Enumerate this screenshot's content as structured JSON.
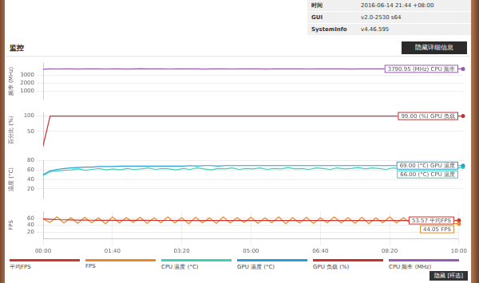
{
  "header": {
    "rows": [
      [
        "时间",
        "2016-06-14 21:44 +08:00"
      ],
      [
        "GUI",
        "v2.0-2530 s64"
      ],
      [
        "SystemInfo",
        "v4.46.595"
      ]
    ]
  },
  "section_title": "监控",
  "button": "隐藏详细信息",
  "footer_button": "隐藏 [环选]",
  "chart_data": [
    {
      "type": "line",
      "y_label": "频率 (MHz)",
      "x": [
        0,
        10,
        20,
        30,
        40,
        50,
        60,
        70,
        80,
        90,
        100,
        110,
        120,
        130,
        140,
        150,
        160,
        170,
        180,
        190,
        200,
        210,
        220,
        230,
        240,
        250,
        260,
        270,
        280,
        290,
        300,
        310,
        320,
        330,
        340,
        350,
        360,
        370,
        380,
        390,
        400,
        410,
        420,
        430,
        440,
        450,
        460,
        470,
        480,
        490,
        500,
        510,
        520,
        530,
        540,
        550,
        560,
        570,
        580,
        590,
        600
      ],
      "xlim": [
        0,
        600
      ],
      "ylim": [
        0,
        4500
      ],
      "yticks": [
        1000,
        2000,
        3000
      ],
      "grid": true,
      "legend": "bottom",
      "tick_labels": "y",
      "series": [
        {
          "name": "CPU 频率 (MHz)",
          "color": "#9b59b6",
          "values": [
            3750,
            3795,
            3780,
            3800,
            3790,
            3770,
            3805,
            3785,
            3795,
            3780,
            3800,
            3790,
            3775,
            3795,
            3810,
            3785,
            3790,
            3800,
            3780,
            3795,
            3790,
            3805,
            3785,
            3770,
            3795,
            3800,
            3790,
            3780,
            3795,
            3785,
            3800,
            3790,
            3775,
            3805,
            3790,
            3785,
            3795,
            3800,
            3780,
            3790,
            3795,
            3785,
            3800,
            3790,
            3770,
            3795,
            3805,
            3785,
            3790,
            3800,
            3780,
            3795,
            3790,
            3785,
            3800,
            3795,
            3780,
            3790,
            3805,
            3785,
            3790.95
          ]
        }
      ],
      "annotations": [
        {
          "text": "3790.95 (MHz) CPU 频率",
          "x": 600,
          "y": 3790.95
        }
      ]
    },
    {
      "type": "line",
      "y_label": "百分比 (%)",
      "x": [
        0,
        10,
        20,
        30,
        40,
        50,
        60,
        70,
        80,
        90,
        100,
        110,
        120,
        130,
        140,
        150,
        160,
        170,
        180,
        190,
        200,
        210,
        220,
        230,
        240,
        250,
        260,
        270,
        280,
        290,
        300,
        310,
        320,
        330,
        340,
        350,
        360,
        370,
        380,
        390,
        400,
        410,
        420,
        430,
        440,
        450,
        460,
        470,
        480,
        490,
        500,
        510,
        520,
        530,
        540,
        550,
        560,
        570,
        580,
        590,
        600
      ],
      "xlim": [
        0,
        600
      ],
      "ylim": [
        0,
        110
      ],
      "yticks": [
        50,
        100
      ],
      "grid": true,
      "legend": "bottom",
      "tick_labels": "y",
      "series": [
        {
          "name": "GPU 负载 (%)",
          "color": "#c9302c",
          "values": [
            5,
            99,
            99,
            99,
            99,
            99,
            99,
            99,
            99,
            99,
            99,
            99,
            99,
            99,
            99,
            99,
            99,
            99,
            99,
            99,
            99,
            99,
            99,
            99,
            99,
            99,
            99,
            99,
            99,
            99,
            99,
            99,
            99,
            99,
            99,
            99,
            99,
            99,
            99,
            99,
            99,
            99,
            99,
            99,
            99,
            99,
            99,
            99,
            99,
            99,
            99,
            99,
            99,
            99,
            99,
            99,
            99,
            99,
            99,
            99,
            99
          ]
        }
      ],
      "annotations": [
        {
          "text": "99.00 (%) GPU 负载",
          "x": 600,
          "y": 99
        }
      ]
    },
    {
      "type": "line",
      "y_label": "温度 (°C)",
      "x": [
        0,
        10,
        20,
        30,
        40,
        50,
        60,
        70,
        80,
        90,
        100,
        110,
        120,
        130,
        140,
        150,
        160,
        170,
        180,
        190,
        200,
        210,
        220,
        230,
        240,
        250,
        260,
        270,
        280,
        290,
        300,
        310,
        320,
        330,
        340,
        350,
        360,
        370,
        380,
        390,
        400,
        410,
        420,
        430,
        440,
        450,
        460,
        470,
        480,
        490,
        500,
        510,
        520,
        530,
        540,
        550,
        560,
        570,
        580,
        590,
        600
      ],
      "xlim": [
        0,
        600
      ],
      "ylim": [
        0,
        80
      ],
      "yticks": [
        20,
        40,
        60,
        80
      ],
      "grid": true,
      "legend": "bottom",
      "tick_labels": "y",
      "series": [
        {
          "name": "CPU 温度 (°C)",
          "color": "#3fd1b5",
          "values": [
            48,
            56,
            58,
            59,
            60,
            62,
            59,
            61,
            63,
            60,
            62,
            60,
            63,
            61,
            62,
            64,
            61,
            63,
            62,
            60,
            63,
            61,
            64,
            62,
            60,
            63,
            62,
            64,
            61,
            63,
            62,
            64,
            61,
            63,
            62,
            65,
            62,
            63,
            61,
            64,
            63,
            61,
            64,
            62,
            63,
            65,
            62,
            64,
            63,
            61,
            64,
            62,
            63,
            65,
            62,
            64,
            63,
            61,
            64,
            63,
            66
          ]
        },
        {
          "name": "GPU 温度 (°C)",
          "color": "#2a9fd6",
          "values": [
            50,
            58,
            61,
            63,
            64,
            65,
            66,
            66,
            67,
            67,
            67,
            68,
            68,
            68,
            68,
            68,
            68,
            68,
            68,
            68,
            68,
            69,
            68,
            69,
            69,
            68,
            69,
            69,
            69,
            69,
            69,
            69,
            69,
            69,
            69,
            69,
            69,
            69,
            69,
            69,
            69,
            69,
            69,
            69,
            69,
            69,
            69,
            69,
            69,
            69,
            69,
            69,
            69,
            69,
            69,
            69,
            69,
            69,
            69,
            69,
            69
          ]
        }
      ],
      "annotations": [
        {
          "text": "66.00 (°C) CPU 温度",
          "x": 600,
          "y": 66
        },
        {
          "text": "69.00 (°C) GPU 温度",
          "x": 600,
          "y": 69
        }
      ]
    },
    {
      "type": "line",
      "y_label": "FPS",
      "x": [
        0,
        10,
        20,
        30,
        40,
        50,
        60,
        70,
        80,
        90,
        100,
        110,
        120,
        130,
        140,
        150,
        160,
        170,
        180,
        190,
        200,
        210,
        220,
        230,
        240,
        250,
        260,
        270,
        280,
        290,
        300,
        310,
        320,
        330,
        340,
        350,
        360,
        370,
        380,
        390,
        400,
        410,
        420,
        430,
        440,
        450,
        460,
        470,
        480,
        490,
        500,
        510,
        520,
        530,
        540,
        550,
        560,
        570,
        580,
        590,
        600
      ],
      "xlim": [
        0,
        600
      ],
      "xticks": [
        {
          "value": 0,
          "label": "00:00"
        },
        {
          "value": 100,
          "label": "01:40"
        },
        {
          "value": 200,
          "label": "03:20"
        },
        {
          "value": 300,
          "label": "05:00"
        },
        {
          "value": 400,
          "label": "06:40"
        },
        {
          "value": 500,
          "label": "08:20"
        },
        {
          "value": 600,
          "label": "10:00"
        }
      ],
      "ylim": [
        0,
        80
      ],
      "yticks": [
        20,
        40,
        60
      ],
      "grid": true,
      "legend": "bottom",
      "series": [
        {
          "name": "平均FPS",
          "color": "#d0342c",
          "values": [
            58,
            57,
            56,
            55.5,
            55,
            54.8,
            54.5,
            54.3,
            54.2,
            54,
            54,
            53.9,
            53.9,
            53.8,
            53.8,
            53.8,
            53.7,
            53.7,
            53.7,
            53.7,
            53.6,
            53.6,
            53.6,
            53.6,
            53.6,
            53.6,
            53.6,
            53.6,
            53.6,
            53.6,
            53.6,
            53.6,
            53.6,
            53.6,
            53.6,
            53.6,
            53.6,
            53.6,
            53.6,
            53.6,
            53.6,
            53.6,
            53.6,
            53.6,
            53.6,
            53.6,
            53.6,
            53.6,
            53.6,
            53.6,
            53.6,
            53.6,
            53.6,
            53.6,
            53.6,
            53.6,
            53.6,
            53.6,
            53.6,
            53.6,
            53.57
          ]
        },
        {
          "name": "FPS",
          "color": "#e8892b",
          "values": [
            58,
            48,
            64,
            46,
            62,
            45,
            63,
            47,
            61,
            44,
            64,
            46,
            62,
            48,
            63,
            45,
            61,
            47,
            64,
            46,
            62,
            44,
            63,
            47,
            61,
            45,
            64,
            46,
            62,
            48,
            63,
            45,
            61,
            47,
            64,
            44,
            62,
            46,
            63,
            45,
            61,
            47,
            64,
            46,
            62,
            45,
            63,
            44,
            61,
            47,
            64,
            46,
            62,
            45,
            63,
            47,
            61,
            46,
            64,
            45,
            44.05
          ]
        }
      ],
      "annotations": [
        {
          "text": "53.57 平均FPS",
          "x": 600,
          "y": 53.57
        },
        {
          "text": "44.05 FPS",
          "x": 600,
          "y": 44.05
        }
      ]
    }
  ]
}
